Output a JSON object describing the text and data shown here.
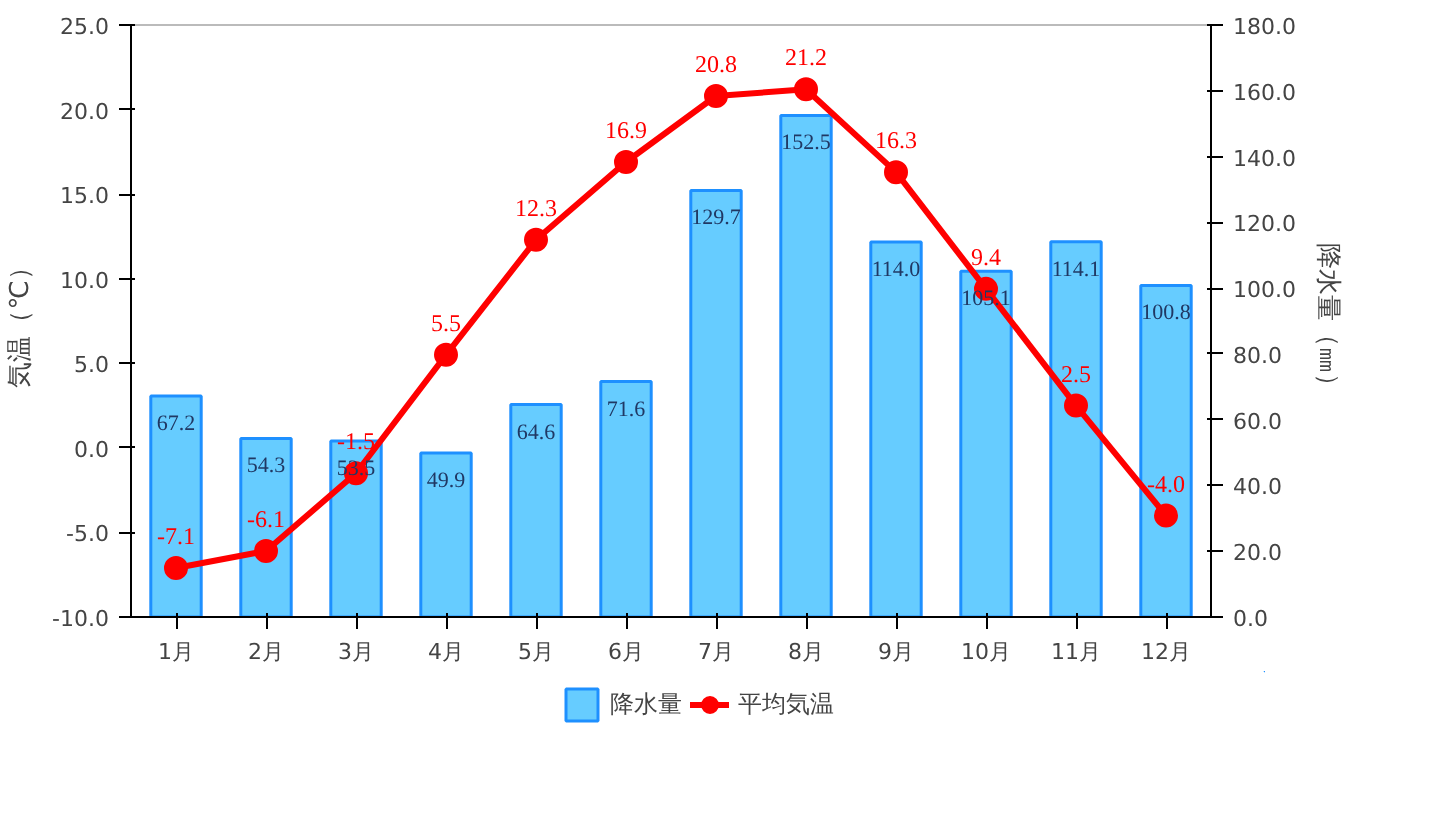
{
  "chart_data": {
    "type": "bar",
    "categories": [
      "1月",
      "2月",
      "3月",
      "4月",
      "5月",
      "6月",
      "7月",
      "8月",
      "9月",
      "10月",
      "11月",
      "12月"
    ],
    "ylabel": "気温（℃）",
    "y2label": "降水量（㎜）",
    "ylim": [
      -10,
      25
    ],
    "yticks": [
      {
        "value": -10,
        "label": "-10.0"
      },
      {
        "value": -5,
        "label": "-5.0"
      },
      {
        "value": 0,
        "label": "0.0"
      },
      {
        "value": 5,
        "label": "5.0"
      },
      {
        "value": 10,
        "label": "10.0"
      },
      {
        "value": 15,
        "label": "15.0"
      },
      {
        "value": 20,
        "label": "20.0"
      },
      {
        "value": 25,
        "label": "25.0"
      }
    ],
    "y2lim": [
      0,
      180
    ],
    "y2ticks": [
      {
        "value": 0,
        "label": "0.0"
      },
      {
        "value": 20,
        "label": "20.0"
      },
      {
        "value": 40,
        "label": "40.0"
      },
      {
        "value": 60,
        "label": "60.0"
      },
      {
        "value": 80,
        "label": "80.0"
      },
      {
        "value": 100,
        "label": "100.0"
      },
      {
        "value": 120,
        "label": "120.0"
      },
      {
        "value": 140,
        "label": "140.0"
      },
      {
        "value": 160,
        "label": "160.0"
      },
      {
        "value": 180,
        "label": "180.0"
      }
    ],
    "legend": "bottom",
    "marker": "circle",
    "series": [
      {
        "name": "降水量",
        "type": "bar",
        "axis": "y2",
        "color": "#66ccff",
        "values": [
          67.2,
          54.3,
          53.5,
          49.9,
          64.6,
          71.6,
          129.7,
          152.5,
          114.0,
          105.1,
          114.1,
          100.8
        ],
        "value_labels": [
          "67.2",
          "54.3",
          "53.5",
          "49.9",
          "64.6",
          "71.6",
          "129.7",
          "152.5",
          "114.0",
          "105.1",
          "114.1",
          "100.8"
        ]
      },
      {
        "name": "平均気温",
        "type": "line",
        "color": "#ff0000",
        "values": [
          -7.1,
          -6.1,
          -1.5,
          5.5,
          12.3,
          16.9,
          20.8,
          21.2,
          16.3,
          9.4,
          2.5,
          -4.0
        ],
        "value_labels": [
          "-7.1",
          "-6.1",
          "-1.5",
          "5.5",
          "12.3",
          "16.9",
          "20.8",
          "21.2",
          "16.3",
          "9.4",
          "2.5",
          "-4.0"
        ]
      }
    ]
  }
}
